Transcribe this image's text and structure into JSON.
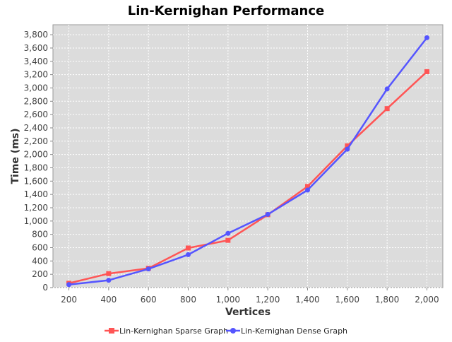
{
  "colors": {
    "sparse_series": "#ff5555",
    "dense_series": "#5555ff",
    "plot_background": "#dcdcdc",
    "gridline": "#ffffff"
  },
  "chart_data": {
    "type": "line",
    "title": "Lin-Kernighan Performance",
    "xlabel": "Vertices",
    "ylabel": "Time (ms)",
    "x": [
      200,
      400,
      600,
      800,
      1000,
      1200,
      1400,
      1600,
      1800,
      2000
    ],
    "x_tick_labels": [
      "200",
      "400",
      "600",
      "800",
      "1,000",
      "1,200",
      "1,400",
      "1,600",
      "1,800",
      "2,000"
    ],
    "y_ticks": [
      0,
      200,
      400,
      600,
      800,
      1000,
      1200,
      1400,
      1600,
      1800,
      2000,
      2200,
      2400,
      2600,
      2800,
      3000,
      3200,
      3400,
      3600,
      3800
    ],
    "y_tick_labels": [
      "0",
      "200",
      "400",
      "600",
      "800",
      "1,000",
      "1,200",
      "1,400",
      "1,600",
      "1,800",
      "2,000",
      "2,200",
      "2,400",
      "2,600",
      "2,800",
      "3,000",
      "3,200",
      "3,400",
      "3,600",
      "3,800"
    ],
    "xlim": [
      120,
      2080
    ],
    "ylim": [
      0,
      3950
    ],
    "grid": true,
    "legend_position": "bottom",
    "series": [
      {
        "name": "Lin-Kernighan Sparse Graph",
        "marker": "square",
        "values": [
          65,
          210,
          290,
          595,
          710,
          1095,
          1520,
          2130,
          2690,
          3245
        ]
      },
      {
        "name": "Lin-Kernighan Dense Graph",
        "marker": "circle",
        "values": [
          45,
          110,
          280,
          495,
          815,
          1100,
          1465,
          2080,
          2985,
          3755
        ]
      }
    ]
  }
}
